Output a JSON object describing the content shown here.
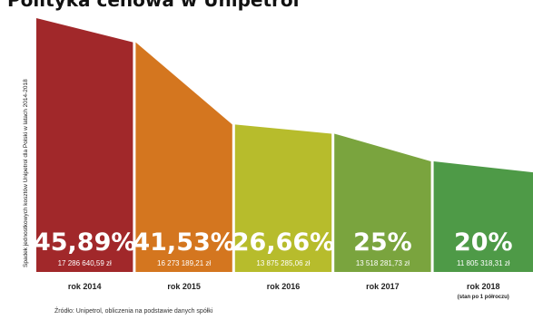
{
  "title": "Polityka cenowa w Unipetrol",
  "chart_data": {
    "type": "area",
    "ylabel": "Spadek jednostkowych kosztów Unipetrol dla Polski w latach 2014-2018",
    "categories": [
      "rok 2014",
      "rok 2015",
      "rok 2016",
      "rok 2017",
      "rok 2018"
    ],
    "category_notes": [
      "",
      "",
      "",
      "",
      "(stan po 1 półroczu)"
    ],
    "percent_labels": [
      "45,89%",
      "41,53%",
      "26,66%",
      "25%",
      "20%"
    ],
    "values": [
      45.89,
      41.53,
      26.66,
      25,
      20
    ],
    "amount_labels": [
      "17 286 640,59 zł",
      "16 273 189,21 zł",
      "13 875 285,06 zł",
      "13 518 281,73 zł",
      "11 805 318,31 zł"
    ],
    "colors": [
      "#a1282a",
      "#d4761f",
      "#b7bc2c",
      "#7aa43e",
      "#4e9a47"
    ],
    "footnote": "Źródło: Unipetrol, obliczenia na podstawie danych spółki"
  }
}
